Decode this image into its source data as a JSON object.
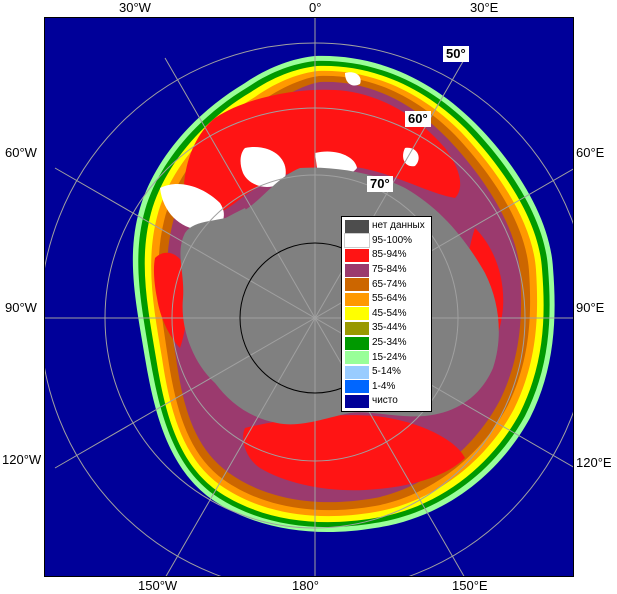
{
  "meridian_labels": {
    "top": [
      "30°W",
      "0°",
      "30°E"
    ],
    "left": [
      "60°W",
      "90°W",
      "120°W"
    ],
    "right": [
      "60°E",
      "90°E",
      "120°E"
    ],
    "bottom": [
      "150°W",
      "180°",
      "150°E"
    ]
  },
  "latitude_labels": [
    "50°",
    "60°",
    "70°"
  ],
  "legend": [
    {
      "label": "нет данных",
      "color": "#4d4d4d"
    },
    {
      "label": "95-100%",
      "color": "#ffffff"
    },
    {
      "label": "85-94%",
      "color": "#ff1414"
    },
    {
      "label": "75-84%",
      "color": "#9b3a6e"
    },
    {
      "label": "65-74%",
      "color": "#cc6600"
    },
    {
      "label": "55-64%",
      "color": "#ff9900"
    },
    {
      "label": "45-54%",
      "color": "#ffff00"
    },
    {
      "label": "35-44%",
      "color": "#999900"
    },
    {
      "label": "25-34%",
      "color": "#009900"
    },
    {
      "label": "15-24%",
      "color": "#99ff99"
    },
    {
      "label": "5-14%",
      "color": "#99ccff"
    },
    {
      "label": "1-4%",
      "color": "#0066ff"
    },
    {
      "label": "чисто",
      "color": "#000099"
    }
  ],
  "colors": {
    "ocean": "#000099",
    "land": "#808080",
    "grid": "#a0a0a0",
    "grid_inner": "#000000"
  }
}
